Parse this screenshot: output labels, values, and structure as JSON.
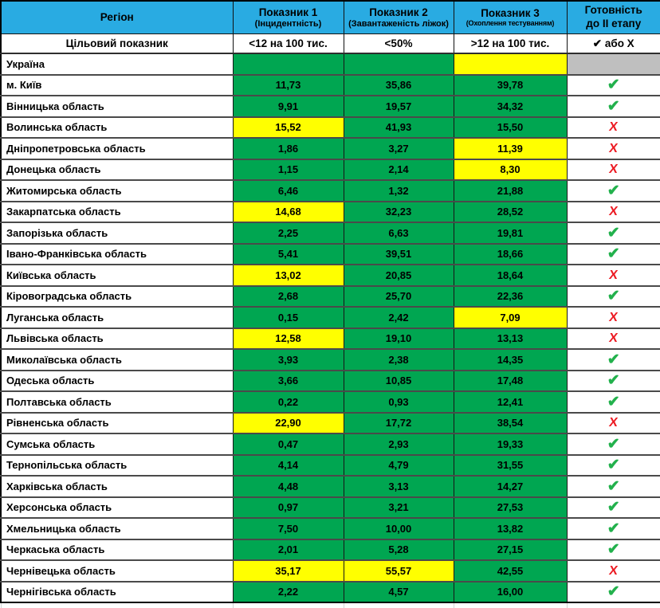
{
  "colors": {
    "header_blue": "#29ABE2",
    "cell_green": "#00A651",
    "cell_yellow": "#FFFF00",
    "cell_gray": "#BFBFBF",
    "check_green": "#22B14C",
    "x_red": "#EC1C24"
  },
  "symbols": {
    "check": "✔",
    "x": "Х"
  },
  "header": {
    "columns": [
      {
        "label": "Регіон",
        "sublabel": ""
      },
      {
        "label": "Показник 1",
        "sublabel": "(Інцидентність)"
      },
      {
        "label": "Показник 2",
        "sublabel": "(Завантаженість ліжок)"
      },
      {
        "label": "Показник 3",
        "sublabel": "(Охоплення тестуванням)"
      },
      {
        "label": "Готовність",
        "sublabel": "до ІІ етапу"
      }
    ]
  },
  "target_row": {
    "label": "Цільовий показник",
    "indicator1": "<12 на 100 тис.",
    "indicator2": "<50%",
    "indicator3": ">12 на 100 тис.",
    "readiness": "✔ або Х"
  },
  "ukraine_row": {
    "region": "Україна",
    "v1": "",
    "c1": "green",
    "v2": "",
    "c2": "green",
    "v3": "",
    "c3": "yellow",
    "ready": "none"
  },
  "rows": [
    {
      "region": "м. Київ",
      "v1": "11,73",
      "c1": "green",
      "v2": "35,86",
      "c2": "green",
      "v3": "39,78",
      "c3": "green",
      "ready": "yes"
    },
    {
      "region": "Вінницька область",
      "v1": "9,91",
      "c1": "green",
      "v2": "19,57",
      "c2": "green",
      "v3": "34,32",
      "c3": "green",
      "ready": "yes"
    },
    {
      "region": "Волинська область",
      "v1": "15,52",
      "c1": "yellow",
      "v2": "41,93",
      "c2": "green",
      "v3": "15,50",
      "c3": "green",
      "ready": "no"
    },
    {
      "region": "Дніпропетровська область",
      "v1": "1,86",
      "c1": "green",
      "v2": "3,27",
      "c2": "green",
      "v3": "11,39",
      "c3": "yellow",
      "ready": "no"
    },
    {
      "region": "Донецька область",
      "v1": "1,15",
      "c1": "green",
      "v2": "2,14",
      "c2": "green",
      "v3": "8,30",
      "c3": "yellow",
      "ready": "no"
    },
    {
      "region": "Житомирська область",
      "v1": "6,46",
      "c1": "green",
      "v2": "1,32",
      "c2": "green",
      "v3": "21,88",
      "c3": "green",
      "ready": "yes"
    },
    {
      "region": "Закарпатська область",
      "v1": "14,68",
      "c1": "yellow",
      "v2": "32,23",
      "c2": "green",
      "v3": "28,52",
      "c3": "green",
      "ready": "no"
    },
    {
      "region": "Запорізька область",
      "v1": "2,25",
      "c1": "green",
      "v2": "6,63",
      "c2": "green",
      "v3": "19,81",
      "c3": "green",
      "ready": "yes"
    },
    {
      "region": "Івано-Франківська область",
      "v1": "5,41",
      "c1": "green",
      "v2": "39,51",
      "c2": "green",
      "v3": "18,66",
      "c3": "green",
      "ready": "yes"
    },
    {
      "region": "Київська область",
      "v1": "13,02",
      "c1": "yellow",
      "v2": "20,85",
      "c2": "green",
      "v3": "18,64",
      "c3": "green",
      "ready": "no"
    },
    {
      "region": "Кіровоградська область",
      "v1": "2,68",
      "c1": "green",
      "v2": "25,70",
      "c2": "green",
      "v3": "22,36",
      "c3": "green",
      "ready": "yes"
    },
    {
      "region": "Луганська область",
      "v1": "0,15",
      "c1": "green",
      "v2": "2,42",
      "c2": "green",
      "v3": "7,09",
      "c3": "yellow",
      "ready": "no"
    },
    {
      "region": "Львівська область",
      "v1": "12,58",
      "c1": "yellow",
      "v2": "19,10",
      "c2": "green",
      "v3": "13,13",
      "c3": "green",
      "ready": "no"
    },
    {
      "region": "Миколаївська область",
      "v1": "3,93",
      "c1": "green",
      "v2": "2,38",
      "c2": "green",
      "v3": "14,35",
      "c3": "green",
      "ready": "yes"
    },
    {
      "region": "Одеська область",
      "v1": "3,66",
      "c1": "green",
      "v2": "10,85",
      "c2": "green",
      "v3": "17,48",
      "c3": "green",
      "ready": "yes"
    },
    {
      "region": "Полтавська область",
      "v1": "0,22",
      "c1": "green",
      "v2": "0,93",
      "c2": "green",
      "v3": "12,41",
      "c3": "green",
      "ready": "yes"
    },
    {
      "region": "Рівненська область",
      "v1": "22,90",
      "c1": "yellow",
      "v2": "17,72",
      "c2": "green",
      "v3": "38,54",
      "c3": "green",
      "ready": "no"
    },
    {
      "region": "Сумська область",
      "v1": "0,47",
      "c1": "green",
      "v2": "2,93",
      "c2": "green",
      "v3": "19,33",
      "c3": "green",
      "ready": "yes"
    },
    {
      "region": "Тернопільська область",
      "v1": "4,14",
      "c1": "green",
      "v2": "4,79",
      "c2": "green",
      "v3": "31,55",
      "c3": "green",
      "ready": "yes"
    },
    {
      "region": "Харківська область",
      "v1": "4,48",
      "c1": "green",
      "v2": "3,13",
      "c2": "green",
      "v3": "14,27",
      "c3": "green",
      "ready": "yes"
    },
    {
      "region": "Херсонська область",
      "v1": "0,97",
      "c1": "green",
      "v2": "3,21",
      "c2": "green",
      "v3": "27,53",
      "c3": "green",
      "ready": "yes"
    },
    {
      "region": "Хмельницька область",
      "v1": "7,50",
      "c1": "green",
      "v2": "10,00",
      "c2": "green",
      "v3": "13,82",
      "c3": "green",
      "ready": "yes"
    },
    {
      "region": "Черкаська область",
      "v1": "2,01",
      "c1": "green",
      "v2": "5,28",
      "c2": "green",
      "v3": "27,15",
      "c3": "green",
      "ready": "yes"
    },
    {
      "region": "Чернівецька область",
      "v1": "35,17",
      "c1": "yellow",
      "v2": "55,57",
      "c2": "yellow",
      "v3": "42,55",
      "c3": "green",
      "ready": "no"
    },
    {
      "region": "Чернігівська область",
      "v1": "2,22",
      "c1": "green",
      "v2": "4,57",
      "c2": "green",
      "v3": "16,00",
      "c3": "green",
      "ready": "yes"
    }
  ]
}
